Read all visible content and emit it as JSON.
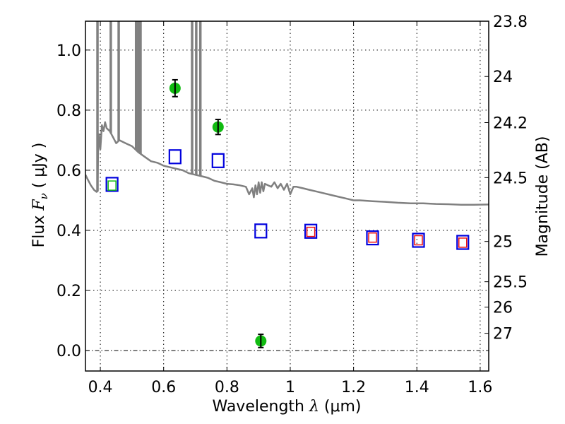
{
  "chart_data": {
    "type": "scatter",
    "title": "",
    "xlabel": "Wavelength  λ (μm)",
    "ylabel": "Flux  F_ν  ( μJy )",
    "ylabel_parts": {
      "prefix": "Flux  ",
      "symbol": "F",
      "subscript": "ν",
      "unit": "  ( μJy )"
    },
    "xlabel_parts": {
      "prefix": "Wavelength  ",
      "symbol": "λ",
      "unit": " (μm)"
    },
    "y2label": "Magnitude (AB)",
    "xlim": [
      0.353,
      1.627
    ],
    "ylim": [
      -0.068,
      1.096
    ],
    "grid": true,
    "x_ticks": [
      {
        "value": 0.4,
        "label": "0.4"
      },
      {
        "value": 0.6,
        "label": "0.6"
      },
      {
        "value": 0.8,
        "label": "0.8"
      },
      {
        "value": 1.0,
        "label": "1"
      },
      {
        "value": 1.2,
        "label": "1.2"
      },
      {
        "value": 1.4,
        "label": "1.4"
      },
      {
        "value": 1.6,
        "label": "1.6"
      }
    ],
    "y_ticks": [
      {
        "value": 0.0,
        "label": "0.0"
      },
      {
        "value": 0.2,
        "label": "0.2"
      },
      {
        "value": 0.4,
        "label": "0.4"
      },
      {
        "value": 0.6,
        "label": "0.6"
      },
      {
        "value": 0.8,
        "label": "0.8"
      },
      {
        "value": 1.0,
        "label": "1.0"
      }
    ],
    "y2_ticks": [
      {
        "value": 23.8,
        "label": "23.8"
      },
      {
        "value": 24,
        "label": "24"
      },
      {
        "value": 24.2,
        "label": "24.2"
      },
      {
        "value": 24.5,
        "label": "24.5"
      },
      {
        "value": 25,
        "label": "25"
      },
      {
        "value": 25.5,
        "label": "25.5"
      },
      {
        "value": 26,
        "label": "26"
      },
      {
        "value": 27,
        "label": "27"
      }
    ],
    "y2_zeropoint": 23.9,
    "series": [
      {
        "name": "model spectrum",
        "kind": "line",
        "color": "#808080",
        "x": [
          0.353,
          0.36,
          0.37,
          0.38,
          0.388,
          0.391,
          0.393,
          0.396,
          0.4,
          0.405,
          0.41,
          0.415,
          0.42,
          0.43,
          0.44,
          0.45,
          0.46,
          0.48,
          0.5,
          0.52,
          0.54,
          0.56,
          0.58,
          0.6,
          0.62,
          0.64,
          0.66,
          0.68,
          0.7,
          0.72,
          0.74,
          0.76,
          0.78,
          0.8,
          0.82,
          0.84,
          0.86,
          0.87,
          0.88,
          0.885,
          0.89,
          0.895,
          0.9,
          0.905,
          0.91,
          0.915,
          0.92,
          0.93,
          0.94,
          0.95,
          0.96,
          0.97,
          0.98,
          0.99,
          1.0,
          1.01,
          1.02,
          1.04,
          1.06,
          1.08,
          1.1,
          1.14,
          1.18,
          1.2,
          1.22,
          1.26,
          1.3,
          1.34,
          1.38,
          1.42,
          1.46,
          1.5,
          1.54,
          1.58,
          1.627
        ],
        "y": [
          0.585,
          0.57,
          0.55,
          0.535,
          0.528,
          0.53,
          0.66,
          0.72,
          0.67,
          0.75,
          0.73,
          0.76,
          0.74,
          0.73,
          0.71,
          0.69,
          0.7,
          0.69,
          0.68,
          0.66,
          0.645,
          0.63,
          0.625,
          0.615,
          0.61,
          0.605,
          0.6,
          0.59,
          0.585,
          0.58,
          0.575,
          0.565,
          0.56,
          0.555,
          0.553,
          0.55,
          0.545,
          0.52,
          0.54,
          0.51,
          0.55,
          0.52,
          0.56,
          0.525,
          0.56,
          0.53,
          0.555,
          0.55,
          0.545,
          0.56,
          0.54,
          0.555,
          0.535,
          0.555,
          0.52,
          0.545,
          0.545,
          0.54,
          0.535,
          0.53,
          0.525,
          0.515,
          0.505,
          0.5,
          0.5,
          0.497,
          0.495,
          0.492,
          0.49,
          0.49,
          0.488,
          0.487,
          0.485,
          0.485,
          0.486
        ],
        "emission_lines": [
          {
            "x": 0.391,
            "peak": 1.1
          },
          {
            "x": 0.433,
            "peak": 1.1
          },
          {
            "x": 0.458,
            "peak": 1.1
          },
          {
            "x": 0.513,
            "peak": 1.1
          },
          {
            "x": 0.52,
            "peak": 1.1
          },
          {
            "x": 0.527,
            "peak": 1.1
          },
          {
            "x": 0.69,
            "peak": 1.1
          },
          {
            "x": 0.703,
            "peak": 1.1
          },
          {
            "x": 0.716,
            "peak": 1.1
          }
        ]
      },
      {
        "name": "observed photometry",
        "kind": "errorbar",
        "marker": "circle",
        "color": "#11bb11",
        "points": [
          {
            "x": 0.636,
            "y": 0.873,
            "err": 0.028
          },
          {
            "x": 0.772,
            "y": 0.744,
            "err": 0.025
          },
          {
            "x": 0.907,
            "y": 0.032,
            "err": 0.022
          }
        ]
      },
      {
        "name": "model photometry",
        "kind": "scatter",
        "marker": "square-open",
        "color": "#0000dd",
        "points": [
          {
            "x": 0.437,
            "y": 0.553
          },
          {
            "x": 0.636,
            "y": 0.645
          },
          {
            "x": 0.772,
            "y": 0.632
          },
          {
            "x": 0.907,
            "y": 0.398
          },
          {
            "x": 1.065,
            "y": 0.397
          },
          {
            "x": 1.26,
            "y": 0.375
          },
          {
            "x": 1.405,
            "y": 0.367
          },
          {
            "x": 1.545,
            "y": 0.36
          }
        ]
      },
      {
        "name": "optical band (inner)",
        "kind": "scatter",
        "marker": "square-open-small",
        "color": "#11bb11",
        "points": [
          {
            "x": 0.437,
            "y": 0.549
          }
        ]
      },
      {
        "name": "near-IR band (inner)",
        "kind": "scatter",
        "marker": "square-open-small",
        "color": "#ee1111",
        "points": [
          {
            "x": 1.065,
            "y": 0.395
          },
          {
            "x": 1.26,
            "y": 0.376
          },
          {
            "x": 1.405,
            "y": 0.367
          },
          {
            "x": 1.545,
            "y": 0.359
          }
        ]
      }
    ]
  }
}
